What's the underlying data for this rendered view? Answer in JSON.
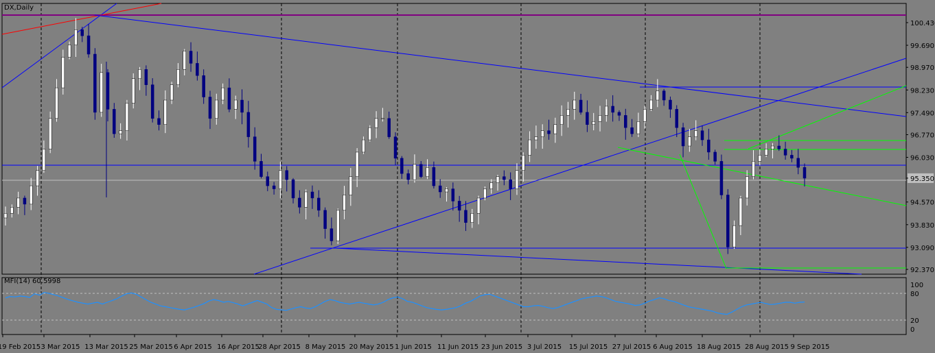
{
  "header": {
    "symbol": "DX,Daily"
  },
  "indicator": {
    "label": "MFI(14) 60.5998",
    "levels": [
      "100",
      "80",
      "20",
      "0"
    ],
    "values": [
      70,
      73,
      72,
      74,
      73,
      71,
      79,
      76,
      82,
      80,
      77,
      74,
      70,
      66,
      63,
      60,
      58,
      56,
      58,
      60,
      56,
      60,
      64,
      68,
      74,
      79,
      81,
      78,
      72,
      66,
      60,
      56,
      52,
      50,
      48,
      46,
      44,
      43,
      46,
      49,
      53,
      57,
      63,
      66,
      64,
      60,
      62,
      59,
      56,
      52,
      56,
      60,
      64,
      60,
      56,
      48,
      44,
      43,
      42,
      45,
      48,
      50,
      47,
      46,
      50,
      56,
      62,
      66,
      64,
      60,
      58,
      56,
      58,
      60,
      58,
      56,
      54,
      56,
      60,
      66,
      70,
      72,
      68,
      62,
      60,
      56,
      52,
      48,
      46,
      44,
      43,
      44,
      46,
      48,
      52,
      58,
      62,
      68,
      74,
      77,
      78,
      74,
      70,
      66,
      62,
      58,
      54,
      50,
      50,
      52,
      53,
      51,
      48,
      46,
      48,
      52,
      56,
      60,
      64,
      68,
      70,
      72,
      74,
      73,
      70,
      66,
      62,
      60,
      58,
      56,
      53,
      54,
      58,
      63,
      66,
      70,
      68,
      64,
      62,
      58,
      54,
      50,
      48,
      46,
      44,
      42,
      40,
      36,
      34,
      33,
      38,
      44,
      50,
      54,
      56,
      58,
      60,
      57,
      55,
      56,
      58,
      60,
      60,
      58,
      60,
      60.6
    ]
  },
  "colors": {
    "background": "#808080",
    "up": "#ffffff",
    "down": "#000080",
    "blue_line": "#0000ff",
    "green_line": "#00ff00",
    "red_line": "#ff0000",
    "mfi_line": "#1e90ff",
    "magenta_line": "#800080"
  },
  "chart_data": {
    "type": "candlestick",
    "symbol": "DX",
    "timeframe": "Daily",
    "current_price": 95.35,
    "ylim": [
      92.37,
      100.43
    ],
    "y_ticks": [
      "100.430",
      "99.690",
      "98.970",
      "98.230",
      "97.490",
      "96.770",
      "96.030",
      "95.350",
      "94.570",
      "93.830",
      "93.090",
      "92.370"
    ],
    "x_tick_labels": [
      "19 Feb 2015",
      "3 Mar 2015",
      "13 Mar 2015",
      "25 Mar 2015",
      "6 Apr 2015",
      "16 Apr 2015",
      "28 Apr 2015",
      "8 May 2015",
      "20 May 2015",
      "1 Jun 2015",
      "11 Jun 2015",
      "23 Jun 2015",
      "3 Jul 2015",
      "15 Jul 2015",
      "27 Jul 2015",
      "6 Aug 2015",
      "18 Aug 2015",
      "28 Aug 2015",
      "9 Sep 2015"
    ],
    "key_points": [
      {
        "label": "13 Mar 2015 high",
        "value": 100.39
      },
      {
        "label": "12 May 2015 low",
        "value": 93.13
      },
      {
        "label": "24 Aug 2015 low",
        "value": 92.62
      },
      {
        "label": "7 Aug 2015 high",
        "value": 98.33
      },
      {
        "label": "last close",
        "value": 95.35
      }
    ],
    "close_path": [
      94.2,
      94.4,
      94.7,
      94.5,
      95.1,
      95.6,
      96.3,
      97.3,
      98.3,
      99.3,
      99.7,
      100.2,
      100.0,
      99.4,
      97.5,
      98.8,
      97.6,
      96.8,
      96.9,
      97.8,
      98.6,
      98.9,
      98.4,
      97.3,
      97.1,
      97.9,
      98.4,
      98.9,
      99.5,
      99.1,
      98.7,
      98.0,
      97.3,
      97.9,
      98.3,
      97.6,
      97.9,
      97.5,
      96.7,
      95.9,
      95.4,
      95.1,
      95.0,
      95.6,
      95.3,
      94.7,
      94.4,
      94.9,
      94.7,
      94.3,
      93.7,
      93.3,
      94.3,
      94.8,
      95.4,
      96.2,
      96.6,
      97.0,
      97.3,
      97.3,
      96.7,
      96.0,
      95.5,
      95.3,
      95.8,
      95.4,
      95.7,
      95.1,
      94.9,
      95.0,
      94.6,
      94.3,
      93.9,
      94.2,
      94.7,
      95.0,
      95.2,
      95.4,
      95.3,
      95.0,
      95.6,
      96.1,
      96.6,
      96.7,
      96.9,
      96.8,
      97.1,
      97.4,
      97.6,
      97.9,
      97.5,
      97.1,
      97.2,
      97.4,
      97.7,
      97.5,
      97.4,
      97.0,
      96.8,
      97.2,
      97.6,
      97.9,
      98.2,
      97.9,
      97.6,
      97.0,
      96.4,
      96.7,
      96.9,
      96.6,
      96.2,
      95.9,
      94.8,
      93.1,
      93.8,
      94.7,
      95.4,
      95.9,
      96.1,
      96.3,
      96.4,
      96.3,
      96.1,
      96.0,
      95.7,
      95.35
    ],
    "support_resistance_levels": [
      100.54,
      98.3,
      96.03,
      95.35,
      93.13
    ]
  }
}
